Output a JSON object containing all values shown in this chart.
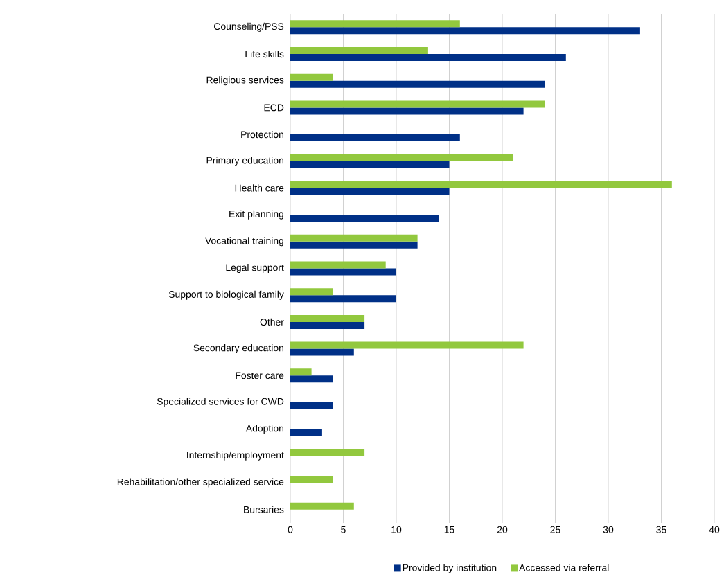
{
  "chart_data": {
    "type": "bar",
    "orientation": "horizontal",
    "categories": [
      "Counseling/PSS",
      "Life skills",
      "Religious services",
      "ECD",
      "Protection",
      "Primary education",
      "Health care",
      "Exit planning",
      "Vocational training",
      "Legal support",
      "Support to biological family",
      "Other",
      "Secondary education",
      "Foster care",
      "Specialized services for CWD",
      "Adoption",
      "Internship/employment",
      "Rehabilitation/other specialized service",
      "Bursaries"
    ],
    "series": [
      {
        "name": "Provided by institution",
        "color": "#003087",
        "values": [
          33,
          26,
          24,
          22,
          16,
          15,
          15,
          14,
          12,
          10,
          10,
          7,
          6,
          4,
          4,
          3,
          null,
          null,
          null
        ]
      },
      {
        "name": "Accessed via referral",
        "color": "#92c83e",
        "values": [
          16,
          13,
          4,
          24,
          null,
          21,
          36,
          null,
          12,
          9,
          4,
          7,
          22,
          2,
          null,
          null,
          7,
          4,
          6
        ]
      }
    ],
    "xlim": [
      0,
      40
    ],
    "xticks": [
      0,
      5,
      10,
      15,
      20,
      25,
      30,
      35,
      40
    ],
    "grid": "x",
    "legend": "bottom"
  }
}
